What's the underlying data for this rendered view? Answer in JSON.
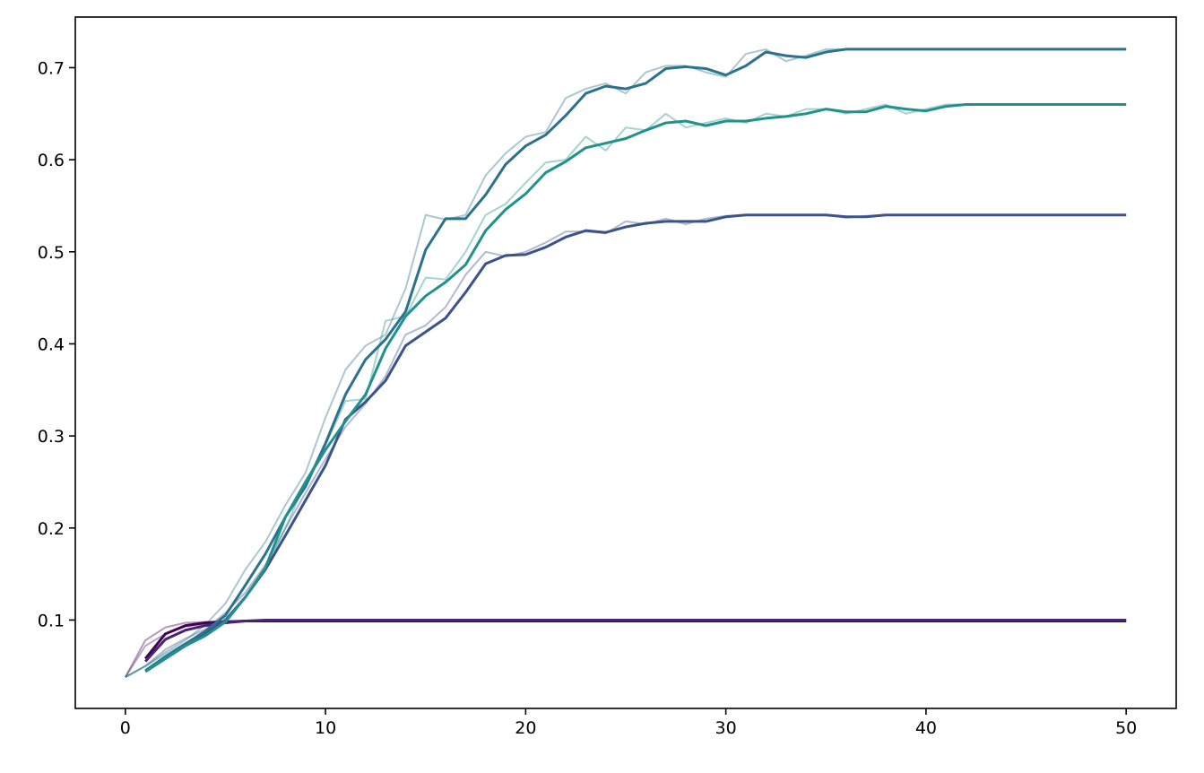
{
  "chart_data": {
    "type": "line",
    "title": "",
    "xlabel": "",
    "ylabel": "",
    "xlim": [
      -2.5,
      52.5
    ],
    "ylim": [
      0.004,
      0.755
    ],
    "x_ticks": [
      0,
      10,
      20,
      30,
      40,
      50
    ],
    "x_tick_labels": [
      "0",
      "10",
      "20",
      "30",
      "40",
      "50"
    ],
    "y_ticks": [
      0.1,
      0.2,
      0.3,
      0.4,
      0.5,
      0.6,
      0.7
    ],
    "y_tick_labels": [
      "0.1",
      "0.2",
      "0.3",
      "0.4",
      "0.5",
      "0.6",
      "0.7"
    ],
    "grid": false,
    "legend": "none",
    "series": [
      {
        "color": "#440154",
        "raw_values": [
          0.038,
          0.078,
          0.092,
          0.097,
          0.098,
          0.099,
          0.099,
          0.099,
          0.099,
          0.099,
          0.099,
          0.099,
          0.099,
          0.099,
          0.099,
          0.099,
          0.099,
          0.099,
          0.099,
          0.099,
          0.099,
          0.099,
          0.099,
          0.099,
          0.099,
          0.099,
          0.099,
          0.099,
          0.099,
          0.099,
          0.099,
          0.099,
          0.099,
          0.099,
          0.099,
          0.099,
          0.099,
          0.099,
          0.099,
          0.099,
          0.099,
          0.099,
          0.099,
          0.099,
          0.099,
          0.099,
          0.099,
          0.099,
          0.099,
          0.099,
          0.099
        ],
        "smoothed_values": [
          null,
          0.058,
          0.085,
          0.094,
          0.097,
          0.098,
          0.099,
          0.099,
          0.099,
          0.099,
          0.099,
          0.099,
          0.099,
          0.099,
          0.099,
          0.099,
          0.099,
          0.099,
          0.099,
          0.099,
          0.099,
          0.099,
          0.099,
          0.099,
          0.099,
          0.099,
          0.099,
          0.099,
          0.099,
          0.099,
          0.099,
          0.099,
          0.099,
          0.099,
          0.099,
          0.099,
          0.099,
          0.099,
          0.099,
          0.099,
          0.099,
          0.099,
          0.099,
          0.099,
          0.099,
          0.099,
          0.099,
          0.099,
          0.099,
          0.099,
          0.099
        ]
      },
      {
        "color": "#482475",
        "raw_values": [
          0.038,
          0.072,
          0.085,
          0.093,
          0.096,
          0.098,
          0.099,
          0.1,
          0.1,
          0.1,
          0.1,
          0.1,
          0.1,
          0.1,
          0.1,
          0.1,
          0.1,
          0.1,
          0.1,
          0.1,
          0.1,
          0.1,
          0.1,
          0.1,
          0.1,
          0.1,
          0.1,
          0.1,
          0.1,
          0.1,
          0.1,
          0.1,
          0.1,
          0.1,
          0.1,
          0.1,
          0.1,
          0.1,
          0.1,
          0.1,
          0.1,
          0.1,
          0.1,
          0.1,
          0.1,
          0.1,
          0.1,
          0.1,
          0.1,
          0.1,
          0.1
        ],
        "smoothed_values": [
          null,
          0.055,
          0.079,
          0.089,
          0.094,
          0.097,
          0.099,
          0.1,
          0.1,
          0.1,
          0.1,
          0.1,
          0.1,
          0.1,
          0.1,
          0.1,
          0.1,
          0.1,
          0.1,
          0.1,
          0.1,
          0.1,
          0.1,
          0.1,
          0.1,
          0.1,
          0.1,
          0.1,
          0.1,
          0.1,
          0.1,
          0.1,
          0.1,
          0.1,
          0.1,
          0.1,
          0.1,
          0.1,
          0.1,
          0.1,
          0.1,
          0.1,
          0.1,
          0.1,
          0.1,
          0.1,
          0.1,
          0.1,
          0.1,
          0.1,
          0.1
        ]
      },
      {
        "color": "#3b528b",
        "raw_values": [
          0.038,
          0.05,
          0.068,
          0.08,
          0.09,
          0.108,
          0.13,
          0.16,
          0.2,
          0.238,
          0.275,
          0.31,
          0.335,
          0.365,
          0.41,
          0.42,
          0.44,
          0.475,
          0.5,
          0.495,
          0.5,
          0.51,
          0.522,
          0.522,
          0.52,
          0.533,
          0.53,
          0.536,
          0.53,
          0.536,
          0.539,
          0.54,
          0.54,
          0.54,
          0.54,
          0.54,
          0.537,
          0.539,
          0.54,
          0.54,
          0.54,
          0.54,
          0.54,
          0.54,
          0.54,
          0.54,
          0.54,
          0.54,
          0.54,
          0.54,
          0.54
        ],
        "smoothed_values": [
          null,
          0.045,
          0.06,
          0.074,
          0.086,
          0.1,
          0.125,
          0.155,
          0.192,
          0.23,
          0.268,
          0.318,
          0.337,
          0.36,
          0.398,
          0.413,
          0.428,
          0.456,
          0.487,
          0.496,
          0.497,
          0.505,
          0.516,
          0.523,
          0.521,
          0.527,
          0.531,
          0.533,
          0.533,
          0.533,
          0.538,
          0.54,
          0.54,
          0.54,
          0.54,
          0.54,
          0.538,
          0.538,
          0.54,
          0.54,
          0.54,
          0.54,
          0.54,
          0.54,
          0.54,
          0.54,
          0.54,
          0.54,
          0.54,
          0.54,
          0.54
        ]
      },
      {
        "color": "#2c728e",
        "raw_values": [
          0.038,
          0.05,
          0.065,
          0.078,
          0.095,
          0.118,
          0.155,
          0.185,
          0.225,
          0.26,
          0.32,
          0.372,
          0.398,
          0.41,
          0.46,
          0.54,
          0.535,
          0.54,
          0.583,
          0.607,
          0.625,
          0.63,
          0.667,
          0.677,
          0.683,
          0.672,
          0.695,
          0.702,
          0.702,
          0.695,
          0.69,
          0.715,
          0.72,
          0.707,
          0.713,
          0.72,
          0.72,
          0.72,
          0.72,
          0.72,
          0.72,
          0.72,
          0.72,
          0.72,
          0.72,
          0.72,
          0.72,
          0.72,
          0.72,
          0.72,
          0.72
        ],
        "smoothed_values": [
          null,
          0.045,
          0.06,
          0.074,
          0.088,
          0.105,
          0.138,
          0.172,
          0.212,
          0.245,
          0.292,
          0.345,
          0.383,
          0.405,
          0.435,
          0.502,
          0.536,
          0.536,
          0.562,
          0.595,
          0.615,
          0.627,
          0.648,
          0.672,
          0.68,
          0.677,
          0.683,
          0.699,
          0.701,
          0.699,
          0.692,
          0.702,
          0.717,
          0.713,
          0.711,
          0.717,
          0.72,
          0.72,
          0.72,
          0.72,
          0.72,
          0.72,
          0.72,
          0.72,
          0.72,
          0.72,
          0.72,
          0.72,
          0.72,
          0.72,
          0.72
        ]
      },
      {
        "color": "#21918c",
        "raw_values": [
          0.038,
          0.05,
          0.063,
          0.075,
          0.085,
          0.1,
          0.125,
          0.155,
          0.2,
          0.25,
          0.29,
          0.338,
          0.34,
          0.425,
          0.43,
          0.472,
          0.47,
          0.5,
          0.54,
          0.552,
          0.575,
          0.597,
          0.6,
          0.625,
          0.61,
          0.635,
          0.632,
          0.65,
          0.635,
          0.64,
          0.645,
          0.64,
          0.65,
          0.647,
          0.655,
          0.655,
          0.65,
          0.655,
          0.66,
          0.65,
          0.655,
          0.66,
          0.66,
          0.66,
          0.66,
          0.66,
          0.66,
          0.66,
          0.66,
          0.66,
          0.66
        ],
        "smoothed_values": [
          null,
          0.044,
          0.058,
          0.072,
          0.083,
          0.098,
          0.125,
          0.157,
          0.212,
          0.25,
          0.285,
          0.316,
          0.345,
          0.395,
          0.43,
          0.452,
          0.467,
          0.486,
          0.523,
          0.546,
          0.563,
          0.586,
          0.598,
          0.613,
          0.618,
          0.623,
          0.632,
          0.64,
          0.642,
          0.637,
          0.642,
          0.642,
          0.645,
          0.647,
          0.65,
          0.655,
          0.652,
          0.652,
          0.658,
          0.655,
          0.653,
          0.658,
          0.66,
          0.66,
          0.66,
          0.66,
          0.66,
          0.66,
          0.66,
          0.66,
          0.66
        ]
      }
    ]
  }
}
